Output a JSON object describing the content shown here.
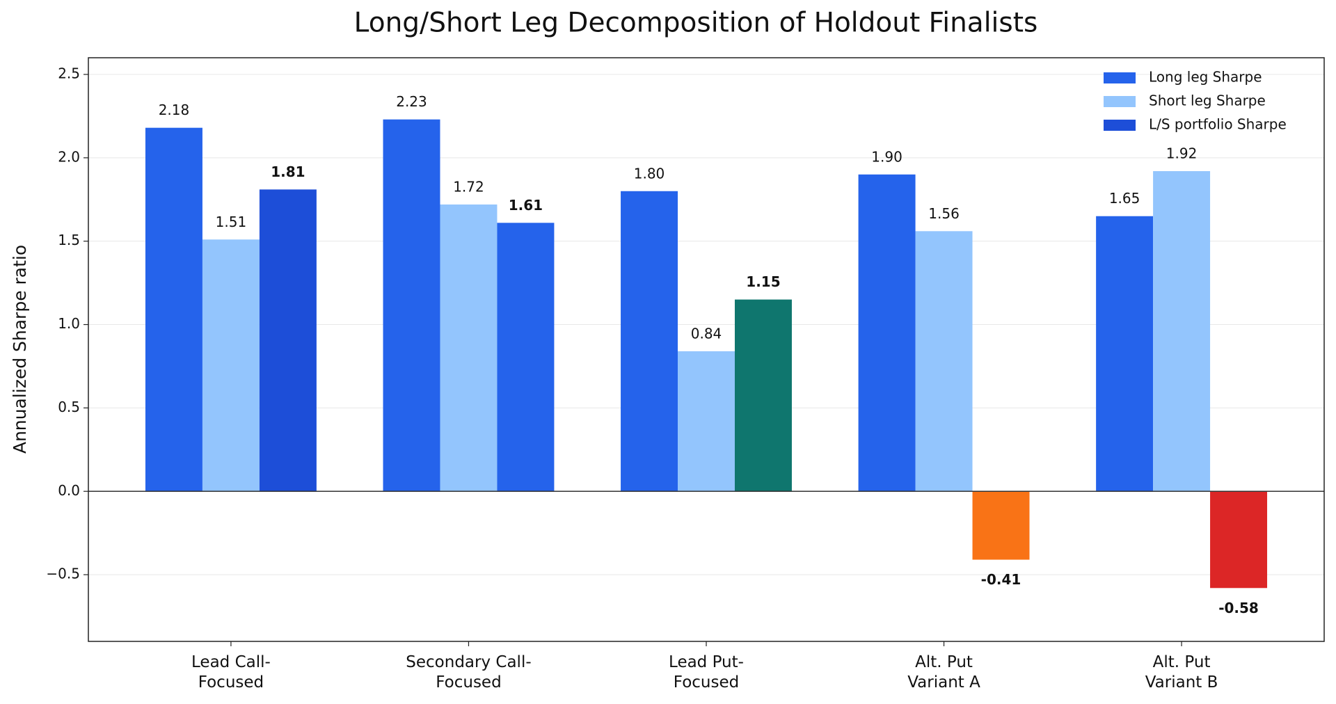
{
  "chart_data": {
    "type": "bar",
    "title": "Long/Short Leg Decomposition of Holdout Finalists",
    "y_label": "Annualized Sharpe ratio",
    "categories": [
      "Lead Call-\nFocused",
      "Secondary Call-\nFocused",
      "Lead Put-\nFocused",
      "Alt. Put\nVariant A",
      "Alt. Put\nVariant B"
    ],
    "series": [
      {
        "name": "Long leg Sharpe",
        "color": "#2563eb",
        "values": [
          2.18,
          2.23,
          1.8,
          1.9,
          1.65
        ],
        "value_labels": [
          "2.18",
          "2.23",
          "1.80",
          "1.90",
          "1.65"
        ]
      },
      {
        "name": "Short leg Sharpe",
        "color": "#93c5fd",
        "values": [
          1.51,
          1.72,
          0.84,
          1.56,
          1.92
        ],
        "value_labels": [
          "1.51",
          "1.72",
          "0.84",
          "1.56",
          "1.92"
        ]
      },
      {
        "name": "L/S portfolio Sharpe",
        "color": "#1d4ed8",
        "colors": [
          "#1d4ed8",
          "#2563eb",
          "#0f766e",
          "#f97316",
          "#dc2626"
        ],
        "values": [
          1.81,
          1.61,
          1.15,
          -0.41,
          -0.58
        ],
        "value_labels": [
          "1.81",
          "1.61",
          "1.15",
          "-0.41",
          "-0.58"
        ]
      }
    ],
    "ylim": [
      -0.9,
      2.6
    ],
    "yticks": [
      {
        "value": -0.5,
        "label": "−0.5"
      },
      {
        "value": 0,
        "label": "0.0"
      },
      0.5,
      {
        "value": 1,
        "label": "1.0"
      },
      1.5,
      {
        "value": 2,
        "label": "2.0"
      },
      2.5
    ],
    "grid": true,
    "legend": "upper right"
  }
}
